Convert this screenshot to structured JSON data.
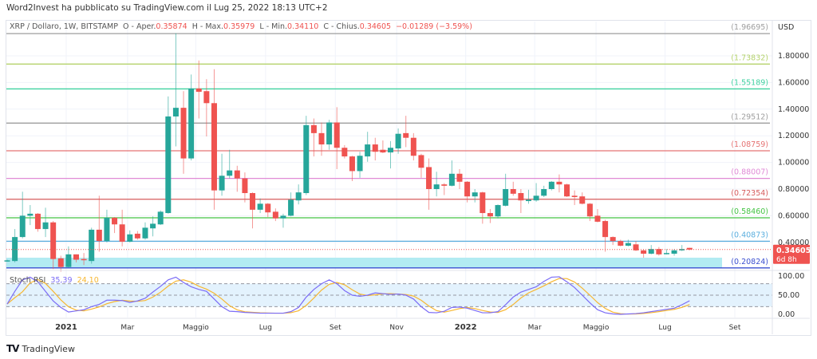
{
  "header": {
    "published": "Word2Invest ha pubblicato su TradingView.com il Lug 25, 2022 18:13 UTC+2"
  },
  "legend": {
    "symbol": "XRP / Dollaro, 1W, BITSTAMP",
    "open_label": "O - Aper.",
    "open": "0.35874",
    "high_label": "H - Max.",
    "high": "0.35979",
    "low_label": "L - Min.",
    "low": "0.34110",
    "close_label": "C - Chius.",
    "close": "0.34605",
    "change": "−0.01289 (−3.59%)"
  },
  "rsi_legend": {
    "name": "Stoch RSI",
    "k": "35,39",
    "d": "24,10"
  },
  "price_axis": {
    "currency": "USD",
    "ticks": [
      "1.80000",
      "1.60000",
      "1.40000",
      "1.20000",
      "1.00000",
      "0.80000",
      "0.60000",
      "0.40000"
    ],
    "tick_values": [
      1.8,
      1.6,
      1.4,
      1.2,
      1.0,
      0.8,
      0.6,
      0.4
    ]
  },
  "current_price": {
    "value": "0.34605",
    "countdown": "6d 8h",
    "price": 0.34605
  },
  "rsi_axis": {
    "ticks": [
      "100.00",
      "50.00",
      "0.00"
    ],
    "tick_values": [
      100,
      50,
      0
    ]
  },
  "date_axis": [
    {
      "label": "2021",
      "week": 7.7,
      "bold": true
    },
    {
      "label": "Mar",
      "week": 15.7
    },
    {
      "label": "Maggio",
      "week": 24.6
    },
    {
      "label": "Lug",
      "week": 33.7
    },
    {
      "label": "Set",
      "week": 42.8
    },
    {
      "label": "Nov",
      "week": 50.8
    },
    {
      "label": "2022",
      "week": 59.8,
      "bold": true
    },
    {
      "label": "Mar",
      "week": 68.8
    },
    {
      "label": "Maggio",
      "week": 76.8
    },
    {
      "label": "Lug",
      "week": 85.8
    },
    {
      "label": "Set",
      "week": 94.9
    }
  ],
  "levels": [
    {
      "label": "(1.96695)",
      "value": 1.96695,
      "color": "#9e9e9e"
    },
    {
      "label": "(1.73832)",
      "value": 1.73832,
      "color": "#b5d36b"
    },
    {
      "label": "(1.55189)",
      "value": 1.55189,
      "color": "#3fd1a0"
    },
    {
      "label": "(1.29512)",
      "value": 1.29512,
      "color": "#9e9e9e"
    },
    {
      "label": "(1.08759)",
      "value": 1.08759,
      "color": "#e57373"
    },
    {
      "label": "(0.88007)",
      "value": 0.88007,
      "color": "#e08ad6"
    },
    {
      "label": "(0.72354)",
      "value": 0.72354,
      "color": "#d65c5c"
    },
    {
      "label": "(0.58460)",
      "value": 0.5846,
      "color": "#45c445"
    },
    {
      "label": "(0.40873)",
      "value": 0.40873,
      "color": "#5aaede"
    },
    {
      "label": "(0.20824)",
      "value": 0.20824,
      "color": "#3a4fd0"
    }
  ],
  "support_zone": {
    "from": 0.20824,
    "to": 0.285,
    "color": "#b2ebf2"
  },
  "colors": {
    "up": "#26a69a",
    "down": "#ef5350",
    "k": "#7b6cf6",
    "d": "#f7b731",
    "rsi_band": "#e3f2fd"
  },
  "brand": {
    "name": "TradingView",
    "mark": "TV"
  },
  "chart_data": {
    "type": "candlestick",
    "title": "XRP / Dollaro, 1W, BITSTAMP",
    "ylabel": "USD",
    "ylim": [
      0.18,
      1.99
    ],
    "ohlc": [
      [
        0.26,
        0.27,
        0.255,
        0.265
      ],
      [
        0.26,
        0.5,
        0.25,
        0.44
      ],
      [
        0.44,
        0.78,
        0.43,
        0.6
      ],
      [
        0.6,
        0.68,
        0.53,
        0.615
      ],
      [
        0.615,
        0.62,
        0.48,
        0.5
      ],
      [
        0.5,
        0.66,
        0.44,
        0.55
      ],
      [
        0.55,
        0.56,
        0.2,
        0.275
      ],
      [
        0.28,
        0.3,
        0.18,
        0.215
      ],
      [
        0.215,
        0.37,
        0.21,
        0.31
      ],
      [
        0.31,
        0.31,
        0.25,
        0.27
      ],
      [
        0.275,
        0.32,
        0.23,
        0.268
      ],
      [
        0.26,
        0.51,
        0.24,
        0.495
      ],
      [
        0.495,
        0.75,
        0.33,
        0.41
      ],
      [
        0.41,
        0.645,
        0.4,
        0.585
      ],
      [
        0.585,
        0.59,
        0.47,
        0.535
      ],
      [
        0.535,
        0.645,
        0.37,
        0.405
      ],
      [
        0.405,
        0.49,
        0.4,
        0.46
      ],
      [
        0.465,
        0.485,
        0.42,
        0.43
      ],
      [
        0.43,
        0.55,
        0.42,
        0.51
      ],
      [
        0.505,
        0.595,
        0.445,
        0.54
      ],
      [
        0.535,
        0.64,
        0.53,
        0.63
      ],
      [
        0.62,
        1.495,
        0.615,
        1.345
      ],
      [
        1.345,
        1.97,
        1.12,
        1.41
      ],
      [
        1.41,
        1.535,
        0.915,
        1.03
      ],
      [
        1.03,
        1.66,
        1.015,
        1.555
      ],
      [
        1.555,
        1.765,
        1.33,
        1.53
      ],
      [
        1.535,
        1.625,
        1.195,
        1.445
      ],
      [
        1.445,
        1.7,
        0.645,
        0.79
      ],
      [
        0.79,
        1.065,
        0.75,
        0.9
      ],
      [
        0.9,
        1.095,
        0.88,
        0.94
      ],
      [
        0.94,
        0.975,
        0.78,
        0.88
      ],
      [
        0.88,
        0.925,
        0.7,
        0.77
      ],
      [
        0.77,
        0.775,
        0.505,
        0.645
      ],
      [
        0.645,
        0.73,
        0.62,
        0.69
      ],
      [
        0.69,
        0.695,
        0.59,
        0.625
      ],
      [
        0.63,
        0.655,
        0.56,
        0.58
      ],
      [
        0.58,
        0.615,
        0.51,
        0.6
      ],
      [
        0.6,
        0.775,
        0.595,
        0.72
      ],
      [
        0.715,
        0.835,
        0.685,
        0.775
      ],
      [
        0.77,
        1.35,
        0.755,
        1.28
      ],
      [
        1.28,
        1.33,
        1.045,
        1.22
      ],
      [
        1.22,
        1.3,
        1.05,
        1.135
      ],
      [
        1.135,
        1.32,
        1.095,
        1.3
      ],
      [
        1.3,
        1.415,
        0.95,
        1.11
      ],
      [
        1.11,
        1.13,
        1.03,
        1.045
      ],
      [
        1.045,
        1.05,
        0.86,
        0.935
      ],
      [
        0.935,
        1.08,
        0.885,
        1.05
      ],
      [
        1.045,
        1.23,
        1.005,
        1.135
      ],
      [
        1.135,
        1.185,
        1.015,
        1.08
      ],
      [
        1.095,
        1.165,
        1.07,
        1.075
      ],
      [
        1.075,
        1.16,
        0.955,
        1.11
      ],
      [
        1.105,
        1.255,
        1.065,
        1.215
      ],
      [
        1.22,
        1.35,
        1.115,
        1.185
      ],
      [
        1.185,
        1.22,
        1.015,
        1.05
      ],
      [
        1.055,
        1.065,
        0.885,
        0.96
      ],
      [
        0.965,
        1.03,
        0.645,
        0.8
      ],
      [
        0.8,
        0.93,
        0.745,
        0.835
      ],
      [
        0.835,
        0.845,
        0.755,
        0.825
      ],
      [
        0.825,
        1.015,
        0.82,
        0.915
      ],
      [
        0.915,
        0.95,
        0.8,
        0.855
      ],
      [
        0.855,
        0.86,
        0.7,
        0.745
      ],
      [
        0.745,
        0.8,
        0.7,
        0.775
      ],
      [
        0.775,
        0.78,
        0.54,
        0.62
      ],
      [
        0.62,
        0.65,
        0.545,
        0.595
      ],
      [
        0.595,
        0.685,
        0.58,
        0.68
      ],
      [
        0.675,
        0.915,
        0.67,
        0.8
      ],
      [
        0.8,
        0.855,
        0.75,
        0.765
      ],
      [
        0.77,
        0.8,
        0.62,
        0.715
      ],
      [
        0.71,
        0.795,
        0.69,
        0.72
      ],
      [
        0.715,
        0.845,
        0.705,
        0.75
      ],
      [
        0.75,
        0.825,
        0.74,
        0.8
      ],
      [
        0.8,
        0.86,
        0.79,
        0.855
      ],
      [
        0.855,
        0.91,
        0.775,
        0.835
      ],
      [
        0.835,
        0.84,
        0.74,
        0.745
      ],
      [
        0.75,
        0.79,
        0.68,
        0.74
      ],
      [
        0.745,
        0.775,
        0.685,
        0.69
      ],
      [
        0.69,
        0.695,
        0.56,
        0.595
      ],
      [
        0.6,
        0.65,
        0.55,
        0.555
      ],
      [
        0.56,
        0.57,
        0.33,
        0.44
      ],
      [
        0.44,
        0.445,
        0.38,
        0.41
      ],
      [
        0.41,
        0.42,
        0.37,
        0.375
      ],
      [
        0.375,
        0.42,
        0.37,
        0.395
      ],
      [
        0.385,
        0.41,
        0.335,
        0.34
      ],
      [
        0.34,
        0.345,
        0.285,
        0.315
      ],
      [
        0.315,
        0.38,
        0.31,
        0.35
      ],
      [
        0.35,
        0.365,
        0.3,
        0.31
      ],
      [
        0.315,
        0.35,
        0.31,
        0.32
      ],
      [
        0.315,
        0.35,
        0.3,
        0.34
      ],
      [
        0.34,
        0.38,
        0.335,
        0.35
      ],
      [
        0.35874,
        0.35979,
        0.3411,
        0.34605
      ]
    ],
    "stoch_rsi": {
      "bands": [
        80,
        50,
        20
      ],
      "d_smoothing": 3,
      "k": [
        27,
        60,
        90,
        97,
        85,
        60,
        35,
        18,
        6,
        9,
        12,
        20,
        26,
        37,
        37,
        36,
        31,
        35,
        42,
        58,
        73,
        90,
        97,
        83,
        72,
        65,
        60,
        40,
        20,
        8,
        7,
        5,
        4,
        3,
        3,
        3,
        3,
        7,
        18,
        45,
        65,
        80,
        90,
        80,
        62,
        50,
        47,
        50,
        56,
        54,
        52,
        53,
        50,
        40,
        20,
        5,
        4,
        8,
        18,
        19,
        16,
        10,
        4,
        4,
        7,
        25,
        45,
        58,
        65,
        72,
        86,
        97,
        98,
        85,
        70,
        50,
        30,
        12,
        4,
        1,
        0,
        1,
        2,
        4,
        7,
        10,
        13,
        16,
        25,
        35.39
      ]
    }
  }
}
